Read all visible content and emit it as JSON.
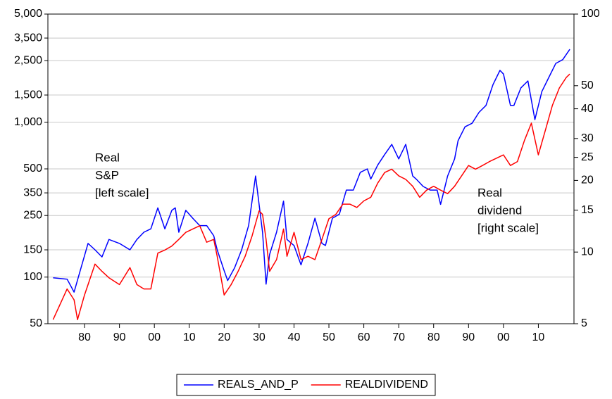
{
  "chart_data": {
    "type": "line",
    "xlim": [
      1869.5,
      2020.2
    ],
    "xticks": [
      {
        "value": 1880,
        "label": "80"
      },
      {
        "value": 1890,
        "label": "90"
      },
      {
        "value": 1900,
        "label": "00"
      },
      {
        "value": 1910,
        "label": "10"
      },
      {
        "value": 1920,
        "label": "20"
      },
      {
        "value": 1930,
        "label": "30"
      },
      {
        "value": 1940,
        "label": "40"
      },
      {
        "value": 1950,
        "label": "50"
      },
      {
        "value": 1960,
        "label": "60"
      },
      {
        "value": 1970,
        "label": "70"
      },
      {
        "value": 1980,
        "label": "80"
      },
      {
        "value": 1990,
        "label": "90"
      },
      {
        "value": 2000,
        "label": "00"
      },
      {
        "value": 2010,
        "label": "10"
      }
    ],
    "ylim": [
      50,
      5000
    ],
    "yscale": "log",
    "yticks": [
      50,
      100,
      150,
      250,
      350,
      500,
      {
        "value": 1000,
        "label": "1,000"
      },
      {
        "value": 1500,
        "label": "1,500"
      },
      {
        "value": 2500,
        "label": "2,500"
      },
      {
        "value": 3500,
        "label": "3,500"
      },
      {
        "value": 5000,
        "label": "5,000"
      }
    ],
    "y2lim": [
      5,
      100
    ],
    "y2scale": "log",
    "y2ticks": [
      5,
      10,
      15,
      20,
      25,
      30,
      40,
      50,
      100
    ],
    "grid": true,
    "legend": "bottom",
    "series": [
      {
        "name": "REALS_AND_P",
        "color": "#0000ff",
        "x": [
          1871,
          1875,
          1877,
          1879,
          1881,
          1883,
          1885,
          1887,
          1890,
          1893,
          1895,
          1897,
          1899,
          1901,
          1903,
          1905,
          1906,
          1907,
          1909,
          1911,
          1913,
          1915,
          1917,
          1918,
          1920,
          1921,
          1923,
          1925,
          1927,
          1929,
          1931,
          1932,
          1933,
          1935,
          1937,
          1938,
          1940,
          1942,
          1944,
          1946,
          1948,
          1949,
          1951,
          1953,
          1955,
          1957,
          1959,
          1961,
          1962,
          1964,
          1966,
          1968,
          1970,
          1972,
          1974,
          1975,
          1977,
          1979,
          1981,
          1982,
          1984,
          1986,
          1987,
          1989,
          1991,
          1993,
          1995,
          1997,
          1999,
          2000,
          2002,
          2003,
          2005,
          2007,
          2009,
          2011,
          2013,
          2015,
          2017,
          2019
        ],
        "values": [
          99,
          97,
          80,
          115,
          165,
          150,
          135,
          175,
          165,
          150,
          175,
          195,
          205,
          280,
          205,
          270,
          280,
          195,
          270,
          240,
          215,
          215,
          185,
          150,
          110,
          95,
          115,
          150,
          215,
          450,
          195,
          90,
          140,
          195,
          310,
          175,
          160,
          120,
          165,
          240,
          165,
          160,
          240,
          255,
          365,
          365,
          475,
          500,
          430,
          530,
          620,
          720,
          580,
          720,
          450,
          430,
          385,
          365,
          365,
          295,
          450,
          580,
          760,
          935,
          985,
          1160,
          1285,
          1750,
          2165,
          2050,
          1285,
          1285,
          1670,
          1850,
          1040,
          1580,
          1950,
          2400,
          2540,
          2960
        ]
      },
      {
        "name": "REALDIVIDEND",
        "color": "#ff0000",
        "axis": "y2",
        "x": [
          1871,
          1875,
          1877,
          1878,
          1880,
          1883,
          1885,
          1887,
          1890,
          1893,
          1895,
          1897,
          1899,
          1901,
          1903,
          1905,
          1907,
          1909,
          1911,
          1913,
          1915,
          1917,
          1918,
          1920,
          1922,
          1924,
          1926,
          1928,
          1930,
          1931,
          1932,
          1933,
          1935,
          1937,
          1938,
          1940,
          1942,
          1944,
          1946,
          1948,
          1950,
          1952,
          1954,
          1956,
          1958,
          1960,
          1962,
          1964,
          1966,
          1968,
          1970,
          1972,
          1974,
          1976,
          1978,
          1980,
          1982,
          1984,
          1986,
          1988,
          1990,
          1992,
          1994,
          1996,
          1998,
          2000,
          2002,
          2004,
          2006,
          2008,
          2010,
          2012,
          2014,
          2016,
          2018,
          2019
        ],
        "values": [
          5.2,
          7.0,
          6.3,
          5.2,
          6.6,
          8.9,
          8.3,
          7.8,
          7.3,
          8.6,
          7.3,
          7.0,
          7.0,
          9.9,
          10.2,
          10.6,
          11.3,
          12.1,
          12.5,
          12.9,
          11.0,
          11.3,
          9.6,
          6.6,
          7.3,
          8.3,
          9.6,
          11.7,
          14.9,
          14.4,
          11.3,
          8.3,
          9.3,
          12.5,
          9.6,
          12.1,
          9.3,
          9.6,
          9.3,
          11.3,
          13.8,
          14.4,
          15.9,
          15.9,
          15.4,
          16.4,
          17.0,
          19.5,
          21.6,
          22.3,
          20.9,
          20.2,
          18.9,
          17.0,
          18.2,
          18.9,
          18.2,
          17.6,
          18.9,
          20.9,
          23.1,
          22.3,
          23.1,
          24.0,
          24.8,
          25.6,
          23.1,
          24.0,
          29.4,
          34.8,
          25.6,
          32.5,
          41.3,
          48.9,
          54.2,
          56.0
        ]
      }
    ],
    "annotations": [
      {
        "lines": [
          "Real",
          "S&P",
          "[left scale]"
        ],
        "color": "#0000ff"
      },
      {
        "lines": [
          "Real",
          "dividend",
          "[right scale]"
        ],
        "color": "#ff0000"
      }
    ]
  }
}
